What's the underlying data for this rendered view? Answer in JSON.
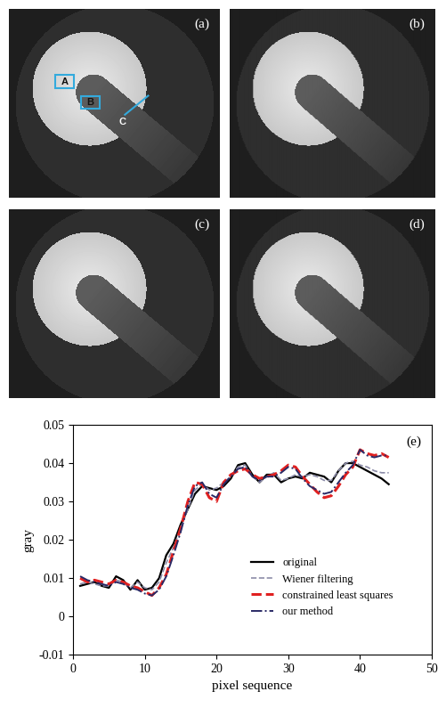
{
  "images": [
    {
      "label": "(a)",
      "regions": [
        "A",
        "B",
        "C"
      ]
    },
    {
      "label": "(b)"
    },
    {
      "label": "(c)"
    },
    {
      "label": "(d)"
    }
  ],
  "chart_data": {
    "type": "line",
    "label": "(e)",
    "x_label": "pixel sequence",
    "y_label": "gray",
    "x": [
      1,
      2,
      3,
      4,
      5,
      6,
      7,
      8,
      9,
      10,
      11,
      12,
      13,
      14,
      15,
      16,
      17,
      18,
      19,
      20,
      21,
      22,
      23,
      24,
      25,
      26,
      27,
      28,
      29,
      30,
      31,
      32,
      33,
      34,
      35,
      36,
      37,
      38,
      39,
      40,
      41,
      42,
      43,
      44
    ],
    "xlim": [
      0,
      50
    ],
    "xticks": [
      0,
      10,
      20,
      30,
      40,
      50
    ],
    "ylim": [
      -0.01,
      0.05
    ],
    "yticks": [
      -0.01,
      0,
      0.01,
      0.02,
      0.03,
      0.04,
      0.05
    ],
    "legend": "lower right",
    "series": [
      {
        "name": "original",
        "color": "#000000",
        "line_style": "solid",
        "values": [
          0.008,
          0.0085,
          0.009,
          0.008,
          0.0075,
          0.0105,
          0.0095,
          0.007,
          0.0095,
          0.007,
          0.0075,
          0.01,
          0.016,
          0.019,
          0.024,
          0.028,
          0.032,
          0.034,
          0.0335,
          0.033,
          0.034,
          0.036,
          0.0395,
          0.04,
          0.037,
          0.035,
          0.037,
          0.037,
          0.035,
          0.036,
          0.0365,
          0.036,
          0.0375,
          0.037,
          0.0365,
          0.035,
          0.038,
          0.04,
          0.04,
          0.039,
          0.038,
          0.037,
          0.036,
          0.0345
        ]
      },
      {
        "name": "Wiener filtering",
        "color": "#8c8ca8",
        "line_style": "dashed",
        "values": [
          0.0085,
          0.009,
          0.0085,
          0.008,
          0.008,
          0.0095,
          0.009,
          0.0075,
          0.009,
          0.0075,
          0.007,
          0.009,
          0.014,
          0.018,
          0.023,
          0.028,
          0.033,
          0.0345,
          0.033,
          0.0335,
          0.035,
          0.0365,
          0.039,
          0.0395,
          0.0365,
          0.035,
          0.0365,
          0.0375,
          0.0355,
          0.036,
          0.037,
          0.0365,
          0.037,
          0.0365,
          0.0355,
          0.0355,
          0.038,
          0.04,
          0.0405,
          0.0395,
          0.039,
          0.038,
          0.0375,
          0.0375
        ]
      },
      {
        "name": "constrained least squares",
        "color": "#e02020",
        "line_style": "dashed",
        "values": [
          0.01,
          0.009,
          0.0095,
          0.009,
          0.0085,
          0.0095,
          0.009,
          0.008,
          0.0075,
          0.0065,
          0.0055,
          0.0075,
          0.011,
          0.017,
          0.023,
          0.03,
          0.035,
          0.0345,
          0.031,
          0.03,
          0.035,
          0.037,
          0.038,
          0.0385,
          0.037,
          0.036,
          0.0365,
          0.037,
          0.038,
          0.0395,
          0.039,
          0.0365,
          0.0345,
          0.0325,
          0.031,
          0.0315,
          0.034,
          0.037,
          0.039,
          0.0435,
          0.0425,
          0.042,
          0.0425,
          0.0415
        ]
      },
      {
        "name": "our method",
        "color": "#2a2a66",
        "line_style": "dashdot",
        "values": [
          0.0105,
          0.0095,
          0.009,
          0.0085,
          0.008,
          0.009,
          0.0085,
          0.0075,
          0.007,
          0.006,
          0.0055,
          0.007,
          0.0105,
          0.016,
          0.022,
          0.029,
          0.034,
          0.035,
          0.032,
          0.031,
          0.0345,
          0.0365,
          0.0385,
          0.039,
          0.0365,
          0.0355,
          0.0365,
          0.0365,
          0.0375,
          0.039,
          0.0385,
          0.036,
          0.034,
          0.033,
          0.032,
          0.0325,
          0.035,
          0.0375,
          0.0395,
          0.0435,
          0.042,
          0.0415,
          0.042,
          0.042
        ]
      }
    ]
  }
}
